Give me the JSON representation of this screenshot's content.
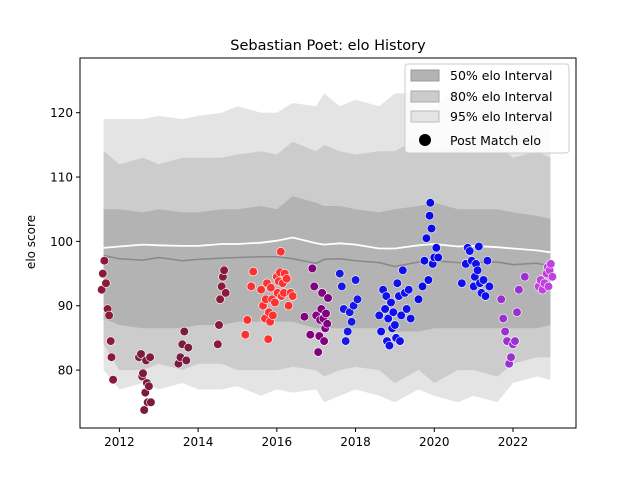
{
  "chart_data": {
    "type": "scatter",
    "title": "Sebastian Poet: elo History",
    "xlabel": "",
    "ylabel": "elo score",
    "xlim": [
      2011.0,
      2023.6
    ],
    "ylim": [
      71.0,
      128.5
    ],
    "x_ticks": [
      2012,
      2014,
      2016,
      2018,
      2020,
      2022
    ],
    "y_ticks": [
      80,
      90,
      100,
      110,
      120
    ],
    "x_tick_labels": [
      "2012",
      "2014",
      "2016",
      "2018",
      "2020",
      "2022"
    ],
    "y_tick_labels": [
      "80",
      "90",
      "100",
      "110",
      "120"
    ],
    "legend": {
      "position": "top-right",
      "entries": [
        "50% elo Interval",
        "80% elo Interval",
        "95% elo Interval",
        "Post Match elo"
      ]
    },
    "colors": {
      "band_50": "#b3b3b3",
      "band_80": "#cccccc",
      "band_95": "#e4e4e4",
      "mean_line": "#ffffff",
      "median_line": "#888888"
    },
    "bands": {
      "x": [
        2011.6,
        2012.0,
        2012.6,
        2013.0,
        2013.6,
        2014.0,
        2014.6,
        2015.0,
        2015.6,
        2016.0,
        2016.4,
        2017.0,
        2017.2,
        2017.6,
        2018.0,
        2018.6,
        2019.0,
        2019.6,
        2020.0,
        2020.6,
        2021.0,
        2021.6,
        2022.0,
        2022.6,
        2022.95
      ],
      "p95_upper": [
        119,
        119,
        119,
        119.5,
        119,
        119.5,
        120,
        121,
        120,
        120,
        121.5,
        121,
        123,
        121,
        122,
        121,
        123,
        123,
        121,
        124,
        122,
        123,
        121,
        123,
        121.5
      ],
      "p80_upper": [
        114,
        112,
        113,
        112,
        113,
        113,
        113,
        113.5,
        114,
        113.5,
        115.5,
        114,
        115,
        114,
        113.5,
        114,
        114,
        116,
        114,
        114.5,
        114,
        115,
        113,
        114,
        113
      ],
      "p50_upper": [
        105,
        105,
        104.5,
        105,
        104.5,
        104.5,
        105,
        105,
        105.5,
        105,
        107,
        106,
        105.5,
        105.5,
        105,
        104.5,
        105,
        105.5,
        106,
        105,
        105,
        105,
        104.5,
        104,
        103.5
      ],
      "p50_lower": [
        88,
        87,
        86.5,
        86.5,
        86.5,
        87,
        87,
        87.5,
        87.5,
        87.5,
        87.5,
        86.5,
        86.5,
        86.5,
        86.5,
        86.5,
        86,
        86,
        86.5,
        86.5,
        86.5,
        86.5,
        86.5,
        86.5,
        87
      ],
      "p80_lower": [
        84,
        80,
        80,
        81,
        80,
        81,
        81,
        80,
        80,
        80,
        80.5,
        80,
        79,
        80,
        80.5,
        80,
        78,
        80,
        78,
        80,
        80,
        79,
        81,
        82,
        82
      ],
      "p95_lower": [
        80,
        77,
        78,
        77,
        78,
        77,
        77,
        77.5,
        76,
        77,
        76.5,
        77,
        75,
        76,
        77,
        76,
        75,
        77,
        76,
        75,
        76,
        75,
        78,
        79,
        78.5
      ],
      "mean_line": [
        99,
        99.2,
        99.5,
        99.4,
        99.3,
        99.3,
        99.6,
        99.6,
        99.8,
        100.1,
        100.6,
        99.7,
        99.5,
        99.7,
        99.5,
        98.9,
        98.9,
        99.4,
        99.6,
        99.2,
        99.3,
        99.1,
        98.9,
        98.6,
        98.3
      ],
      "median_line": [
        97.8,
        97.3,
        97.1,
        97.5,
        97.0,
        97.2,
        97.4,
        97.5,
        97.6,
        97.6,
        97.3,
        96.6,
        97.2,
        97.3,
        97.0,
        96.7,
        96.1,
        96.8,
        97.0,
        96.7,
        96.7,
        96.8,
        96.4,
        96.6,
        96.2
      ]
    },
    "series": [
      {
        "color": "#8b1a3a",
        "x": [
          2011.55,
          2011.58,
          2011.62,
          2011.66,
          2011.7,
          2011.74,
          2011.78,
          2011.8,
          2011.84
        ],
        "y": [
          92.5,
          95.0,
          97.0,
          93.5,
          89.5,
          88.5,
          84.5,
          82.0,
          78.5
        ]
      },
      {
        "color": "#7d1a3f",
        "x": [
          2012.5,
          2012.55,
          2012.58,
          2012.6,
          2012.63,
          2012.66,
          2012.68,
          2012.7,
          2012.72,
          2012.75,
          2012.78,
          2012.8
        ],
        "y": [
          82.0,
          82.5,
          79.0,
          79.5,
          73.8,
          76.5,
          81.5,
          78.0,
          75.0,
          77.5,
          82.0,
          75.0
        ]
      },
      {
        "color": "#7d1a3f",
        "x": [
          2013.5,
          2013.55,
          2013.6,
          2013.65,
          2013.7,
          2013.75
        ],
        "y": [
          81.0,
          82.0,
          84.0,
          86.0,
          81.5,
          83.5
        ]
      },
      {
        "color": "#8b1a3a",
        "x": [
          2014.5,
          2014.53,
          2014.56,
          2014.6,
          2014.63,
          2014.66,
          2014.7
        ],
        "y": [
          84.0,
          87.0,
          91.0,
          93.0,
          94.5,
          95.5,
          92.0
        ]
      },
      {
        "color": "#ff3030",
        "x": [
          2015.2,
          2015.25,
          2015.35,
          2015.4,
          2015.6,
          2015.65,
          2015.7,
          2015.72,
          2015.75,
          2015.78,
          2015.8,
          2015.83,
          2015.85,
          2015.88,
          2015.9,
          2015.95,
          2016.0,
          2016.02,
          2016.05,
          2016.08,
          2016.1,
          2016.12,
          2016.15,
          2016.18,
          2016.2,
          2016.25,
          2016.3,
          2016.35,
          2016.4
        ],
        "y": [
          85.5,
          87.8,
          93.0,
          95.3,
          92.5,
          90.0,
          88.0,
          91.0,
          93.5,
          84.8,
          89.0,
          87.5,
          92.8,
          91.0,
          88.5,
          90.5,
          94.5,
          92.0,
          93.8,
          95.2,
          98.4,
          91.5,
          93.5,
          92.0,
          95.0,
          94.2,
          90.0,
          92.0,
          91.5
        ]
      },
      {
        "color": "#800080",
        "x": [
          2016.7,
          2016.85,
          2016.9,
          2016.95,
          2017.0,
          2017.05,
          2017.08,
          2017.1,
          2017.13,
          2017.15,
          2017.18,
          2017.2,
          2017.23,
          2017.25,
          2017.28,
          2017.3
        ],
        "y": [
          88.3,
          85.5,
          95.8,
          93.0,
          88.5,
          82.8,
          85.3,
          87.8,
          89.5,
          92.0,
          88.0,
          84.5,
          86.5,
          88.8,
          87.2,
          91.2
        ]
      },
      {
        "color": "#1818e6",
        "x": [
          2017.6,
          2017.65,
          2017.7,
          2017.75,
          2017.8,
          2017.85,
          2017.9,
          2017.95,
          2018.0,
          2018.05
        ],
        "y": [
          95.0,
          93.0,
          89.5,
          84.5,
          86.0,
          89.0,
          87.5,
          90.0,
          94.0,
          91.0
        ]
      },
      {
        "color": "#1010ee",
        "x": [
          2018.6,
          2018.65,
          2018.7,
          2018.75,
          2018.78,
          2018.8,
          2018.83,
          2018.86,
          2018.9,
          2018.93,
          2018.96,
          2019.0,
          2019.03,
          2019.06,
          2019.1,
          2019.13,
          2019.16,
          2019.2,
          2019.25,
          2019.3,
          2019.35,
          2019.4
        ],
        "y": [
          88.5,
          86.0,
          92.5,
          89.5,
          91.5,
          84.5,
          88.0,
          83.8,
          90.5,
          86.5,
          89.0,
          87.0,
          85.0,
          93.5,
          91.5,
          84.5,
          88.5,
          95.5,
          92.0,
          89.5,
          92.5,
          88.0
        ]
      },
      {
        "color": "#0a0ae8",
        "x": [
          2019.6,
          2019.7,
          2019.75,
          2019.8,
          2019.85,
          2019.88,
          2019.9,
          2019.93,
          2019.96,
          2020.0,
          2020.05,
          2020.1
        ],
        "y": [
          91.0,
          93.0,
          97.0,
          100.5,
          94.0,
          104.0,
          106.0,
          102.0,
          96.5,
          97.5,
          99.0,
          97.5
        ]
      },
      {
        "color": "#1010ee",
        "x": [
          2020.7,
          2020.8,
          2020.85,
          2020.9,
          2020.95,
          2021.0,
          2021.03,
          2021.06,
          2021.1,
          2021.13,
          2021.16,
          2021.2,
          2021.25,
          2021.3,
          2021.35,
          2021.4
        ],
        "y": [
          93.5,
          96.5,
          99.0,
          98.5,
          97.0,
          93.0,
          94.5,
          96.5,
          95.5,
          99.2,
          93.5,
          92.0,
          94.0,
          91.5,
          97.0,
          93.0
        ]
      },
      {
        "color": "#9b30d0",
        "x": [
          2021.7,
          2021.75,
          2021.8,
          2021.85,
          2021.9,
          2021.95,
          2022.0,
          2022.05,
          2022.1,
          2022.15,
          2022.3
        ],
        "y": [
          91.0,
          88.0,
          86.0,
          84.5,
          81.0,
          82.0,
          84.0,
          84.5,
          89.0,
          92.5,
          94.5
        ]
      },
      {
        "color": "#c040e0",
        "x": [
          2022.65,
          2022.7,
          2022.75,
          2022.8,
          2022.85,
          2022.88,
          2022.9,
          2022.93,
          2022.96,
          2023.0
        ],
        "y": [
          93.0,
          94.0,
          92.5,
          93.5,
          95.0,
          96.0,
          93.0,
          95.5,
          96.5,
          94.5
        ]
      }
    ]
  }
}
